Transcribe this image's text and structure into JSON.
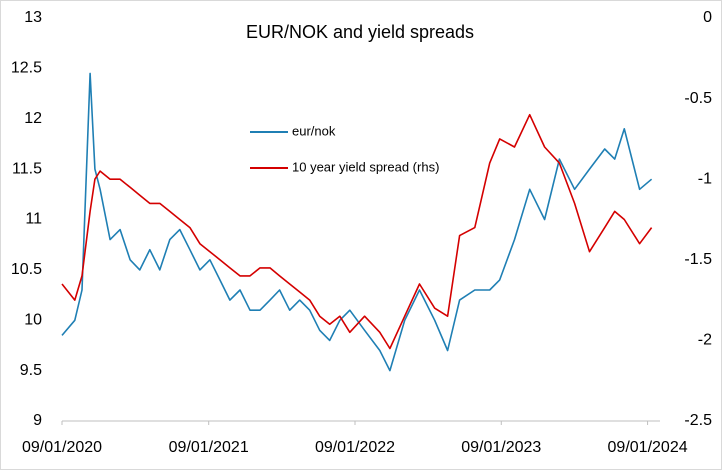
{
  "chart_data": {
    "type": "line",
    "title": "EUR/NOK and yield spreads",
    "x": [
      "2020-01-09",
      "2020-02-10",
      "2020-02-28",
      "2020-03-19",
      "2020-03-31",
      "2020-04-13",
      "2020-05-08",
      "2020-06-02",
      "2020-06-27",
      "2020-07-21",
      "2020-08-15",
      "2020-09-09",
      "2020-10-04",
      "2020-10-29",
      "2020-11-23",
      "2020-12-18",
      "2021-01-12",
      "2021-02-06",
      "2021-03-03",
      "2021-03-28",
      "2021-04-22",
      "2021-05-17",
      "2021-06-11",
      "2021-07-05",
      "2021-07-30",
      "2021-08-24",
      "2021-09-18",
      "2021-10-13",
      "2021-11-07",
      "2021-12-02",
      "2021-12-27",
      "2022-02-02",
      "2022-03-12",
      "2022-04-06",
      "2022-05-13",
      "2022-06-19",
      "2022-07-27",
      "2022-08-28",
      "2022-09-27",
      "2022-11-04",
      "2022-12-11",
      "2023-01-05",
      "2023-02-11",
      "2023-03-21",
      "2023-04-27",
      "2023-06-03",
      "2023-07-11",
      "2023-08-17",
      "2023-09-24",
      "2023-10-19",
      "2023-11-12",
      "2023-12-20",
      "2024-01-19"
    ],
    "series": [
      {
        "name": "eur/nok",
        "color": "#1f7fb4",
        "axis": "y",
        "values": [
          9.85,
          10.0,
          10.3,
          12.45,
          11.5,
          11.3,
          10.8,
          10.9,
          10.6,
          10.5,
          10.7,
          10.5,
          10.8,
          10.9,
          10.7,
          10.5,
          10.6,
          10.4,
          10.2,
          10.3,
          10.1,
          10.1,
          10.2,
          10.3,
          10.1,
          10.2,
          10.1,
          9.9,
          9.8,
          10.0,
          10.1,
          9.9,
          9.7,
          9.5,
          10.0,
          10.3,
          10.0,
          9.7,
          10.2,
          10.3,
          10.3,
          10.4,
          10.8,
          11.3,
          11.0,
          11.6,
          11.3,
          11.5,
          11.7,
          11.6,
          11.9,
          11.3,
          11.4
        ]
      },
      {
        "name": "10 year yield spread (rhs)",
        "color": "#d40000",
        "axis": "y2",
        "values": [
          -1.65,
          -1.75,
          -1.6,
          -1.2,
          -1.0,
          -0.95,
          -1.0,
          -1.0,
          -1.05,
          -1.1,
          -1.15,
          -1.15,
          -1.2,
          -1.25,
          -1.3,
          -1.4,
          -1.45,
          -1.5,
          -1.55,
          -1.6,
          -1.6,
          -1.55,
          -1.55,
          -1.6,
          -1.65,
          -1.7,
          -1.75,
          -1.85,
          -1.9,
          -1.85,
          -1.95,
          -1.85,
          -1.95,
          -2.05,
          -1.85,
          -1.65,
          -1.8,
          -1.85,
          -1.35,
          -1.3,
          -0.9,
          -0.75,
          -0.8,
          -0.6,
          -0.8,
          -0.9,
          -1.15,
          -1.45,
          -1.3,
          -1.2,
          -1.25,
          -1.4,
          -1.3
        ]
      }
    ],
    "xlim": [
      "2020-01-09",
      "2024-02-09"
    ],
    "xticks": [
      {
        "value": "2020-01-09",
        "label": "09/01/2020"
      },
      {
        "value": "2021-01-09",
        "label": "09/01/2021"
      },
      {
        "value": "2022-01-09",
        "label": "09/01/2022"
      },
      {
        "value": "2023-01-09",
        "label": "09/01/2023"
      },
      {
        "value": "2024-01-09",
        "label": "09/01/2024"
      }
    ],
    "ylim": [
      9,
      13
    ],
    "yticks": [
      9,
      9.5,
      10,
      10.5,
      11,
      11.5,
      12,
      12.5,
      13
    ],
    "y2lim": [
      -2.5,
      0
    ],
    "y2ticks": [
      -2.5,
      -2,
      -1.5,
      -1,
      -0.5,
      0
    ],
    "grid": false,
    "legend": "upper center"
  }
}
